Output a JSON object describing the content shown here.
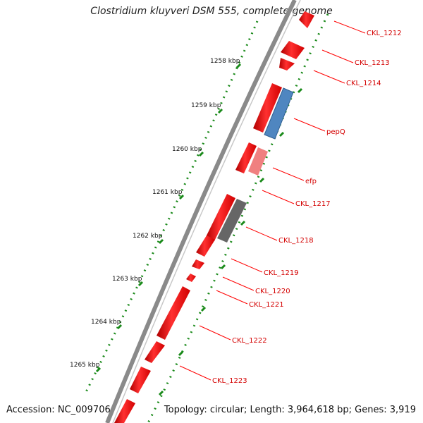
{
  "title": "Clostridium kluyveri DSM 555, complete genome",
  "accession": "Accession: NC_009706",
  "topology": "Topology: circular; Length: 3,964,618 bp; Genes: 3,919",
  "ticks": [
    {
      "label": "1258 kbp"
    },
    {
      "label": "1259 kbp"
    },
    {
      "label": "1260 kbp"
    },
    {
      "label": "1261 kbp"
    },
    {
      "label": "1262 kbp"
    },
    {
      "label": "1263 kbp"
    },
    {
      "label": "1264 kbp"
    },
    {
      "label": "1265 kbp"
    }
  ],
  "genes": [
    {
      "label": "CKL_1212"
    },
    {
      "label": "CKL_1213"
    },
    {
      "label": "CKL_1214"
    },
    {
      "label": "pepQ"
    },
    {
      "label": "efp"
    },
    {
      "label": "CKL_1217"
    },
    {
      "label": "CKL_1218"
    },
    {
      "label": "CKL_1219"
    },
    {
      "label": "CKL_1220"
    },
    {
      "label": "CKL_1221"
    },
    {
      "label": "CKL_1222"
    },
    {
      "label": "CKL_1223"
    }
  ],
  "colors": {
    "gene": "#ff0000",
    "pepq": "#4f86c0",
    "efp": "#f08080",
    "ckl1218": "#666666",
    "backbone": "#888888",
    "tick": "#1a8a1a",
    "label": "#d40000"
  }
}
